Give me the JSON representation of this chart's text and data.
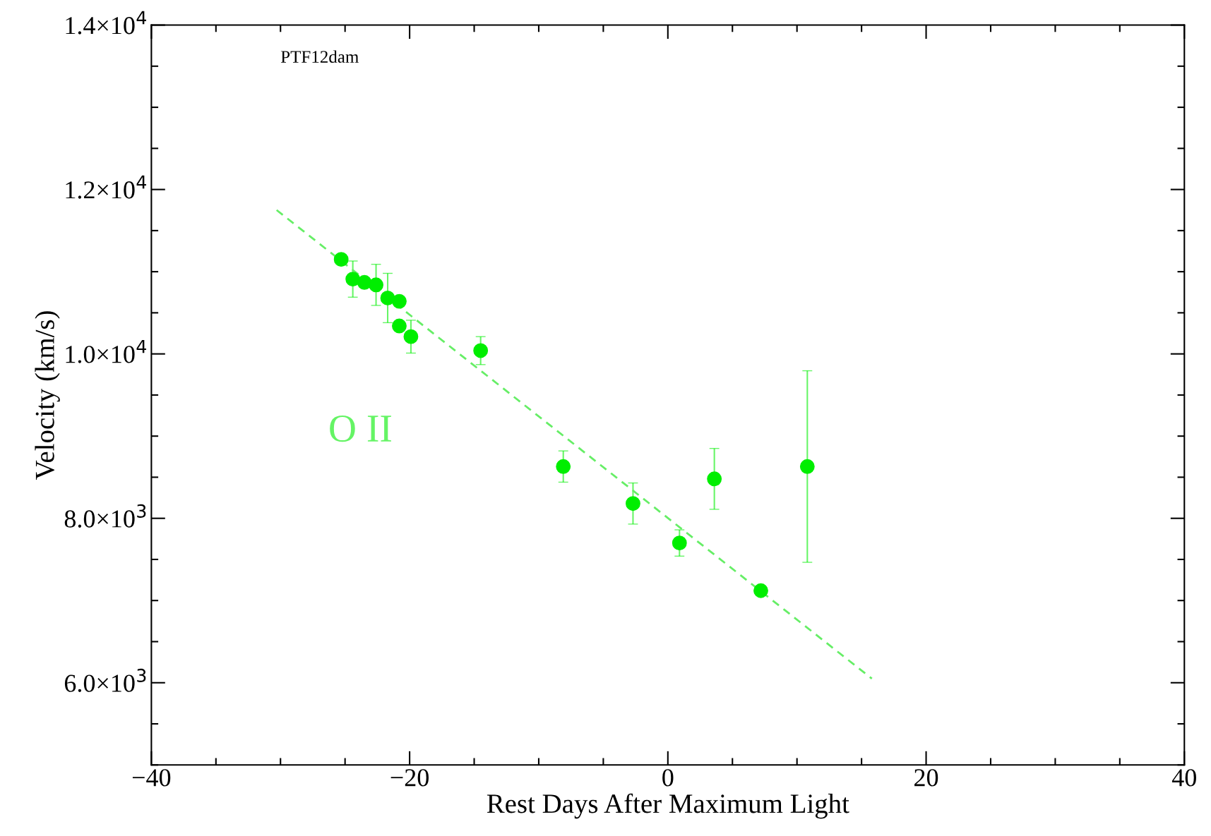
{
  "chart_data": {
    "type": "scatter",
    "xlabel": "Rest Days After Maximum Light",
    "ylabel": "Velocity (km/s)",
    "annotations": [
      "PTF12dam"
    ],
    "xlim": [
      -40,
      40
    ],
    "ylim": [
      5000,
      14000
    ],
    "xticks": [
      {
        "value": -40,
        "label": "−40"
      },
      {
        "value": -35,
        "label": null
      },
      {
        "value": -30,
        "label": null
      },
      {
        "value": -25,
        "label": null
      },
      {
        "value": -20,
        "label": "−20"
      },
      {
        "value": -15,
        "label": null
      },
      {
        "value": -10,
        "label": null
      },
      {
        "value": -5,
        "label": null
      },
      0,
      {
        "value": 5,
        "label": null
      },
      {
        "value": 10,
        "label": null
      },
      {
        "value": 15,
        "label": null
      },
      20,
      {
        "value": 25,
        "label": null
      },
      {
        "value": 30,
        "label": null
      },
      {
        "value": 35,
        "label": null
      },
      40
    ],
    "yticks": [
      {
        "value": 5000,
        "label": null
      },
      {
        "value": 5500,
        "label": null
      },
      {
        "value": 6000,
        "label": "6.0×10$^{3}$"
      },
      {
        "value": 6500,
        "label": null
      },
      {
        "value": 7000,
        "label": null
      },
      {
        "value": 7500,
        "label": null
      },
      {
        "value": 8000,
        "label": "8.0×10$^{3}$"
      },
      {
        "value": 8500,
        "label": null
      },
      {
        "value": 9000,
        "label": null
      },
      {
        "value": 9500,
        "label": null
      },
      {
        "value": 10000,
        "label": "1.0×10$^{4}$"
      },
      {
        "value": 10500,
        "label": null
      },
      {
        "value": 11000,
        "label": null
      },
      {
        "value": 11500,
        "label": null
      },
      {
        "value": 12000,
        "label": "1.2×10$^{4}$"
      },
      {
        "value": 12500,
        "label": null
      },
      {
        "value": 13000,
        "label": null
      },
      {
        "value": 13500,
        "label": null
      },
      {
        "value": 14000,
        "label": "1.4×10$^{4}$"
      }
    ],
    "grid": false,
    "legend": false,
    "series": [
      {
        "name": "O II",
        "color": "#00ee00",
        "marker": "circle",
        "x": [
          -25.3,
          -24.4,
          -23.5,
          -22.6,
          -21.7,
          -20.8,
          -20.8,
          -19.9,
          -14.5,
          -8.1,
          -2.7,
          0.9,
          3.6,
          7.2,
          10.8
        ],
        "values": [
          11150,
          10910,
          10870,
          10840,
          10680,
          10640,
          10340,
          10210,
          10040,
          8630,
          8180,
          7700,
          8480,
          7120,
          8630
        ],
        "errors": [
          null,
          220,
          null,
          250,
          300,
          null,
          null,
          200,
          170,
          190,
          250,
          160,
          370,
          null,
          1165
        ]
      },
      {
        "type": "line",
        "color": "#66ee66",
        "line_style": "dashed",
        "marker": "none",
        "x": [
          -30.3,
          15.8
        ],
        "values": [
          11750,
          6050
        ]
      }
    ]
  }
}
